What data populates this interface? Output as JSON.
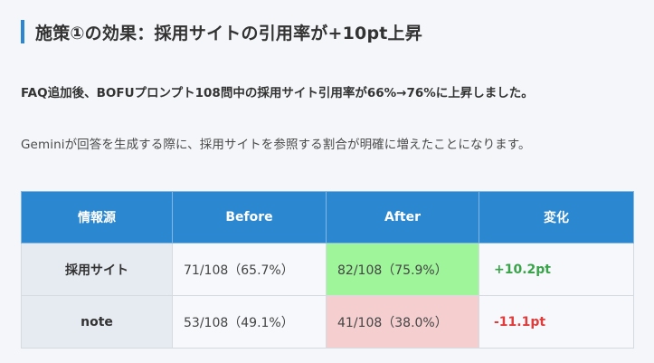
{
  "heading": {
    "title": "施策①の効果：採用サイトの引用率が+10pt上昇"
  },
  "lead": "FAQ追加後、BOFUプロンプト108問中の採用サイト引用率が66%→76%に上昇しました。",
  "body": "Geminiが回答を生成する際に、採用サイトを参照する割合が明確に増えたことになります。",
  "table": {
    "headers": [
      "情報源",
      "Before",
      "After",
      "変化"
    ],
    "rows": [
      {
        "source": "採用サイト",
        "before": "71/108（65.7%）",
        "after": "82/108（75.9%）",
        "change": "+10.2pt",
        "trend": "up"
      },
      {
        "source": "note",
        "before": "53/108（49.1%）",
        "after": "41/108（38.0%）",
        "change": "-11.1pt",
        "trend": "down"
      }
    ]
  },
  "colors": {
    "accent": "#2b87cf",
    "increase_bg": "#9ef59a",
    "decrease_bg": "#f5cfd0",
    "increase_text": "#3aa34a",
    "decrease_text": "#e03c3c"
  }
}
